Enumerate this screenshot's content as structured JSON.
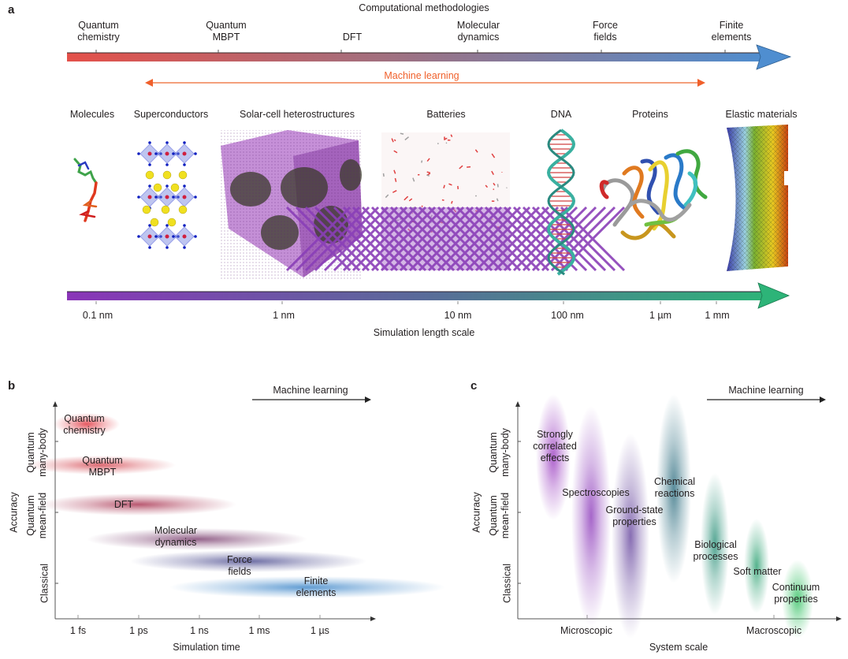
{
  "panel_a": {
    "label": "a",
    "methods_title": "Computational methodologies",
    "methods": [
      {
        "label": "Quantum\nchemistry"
      },
      {
        "label": "Quantum\nMBPT"
      },
      {
        "label": "DFT"
      },
      {
        "label": "Molecular\ndynamics"
      },
      {
        "label": "Force\nfields"
      },
      {
        "label": "Finite\nelements"
      }
    ],
    "machine_learning_label": "Machine learning",
    "systems": [
      {
        "label": "Molecules",
        "image": "molecule-structure"
      },
      {
        "label": "Superconductors",
        "image": "perovskite-lattice"
      },
      {
        "label": "Solar-cell heterostructures",
        "image": "nanocrystal-cube"
      },
      {
        "label": "Batteries",
        "image": "electrolyte-interface"
      },
      {
        "label": "DNA",
        "image": "dna-double-helix"
      },
      {
        "label": "Proteins",
        "image": "protein-ribbon"
      },
      {
        "label": "Elastic materials",
        "image": "finite-element-mesh"
      }
    ],
    "length_ticks": [
      "0.1 nm",
      "1 nm",
      "10 nm",
      "100 nm",
      "1 µm",
      "1 mm"
    ],
    "length_axis_label": "Simulation length scale",
    "colors": {
      "methods_bar_start": "#e4514a",
      "methods_bar_end": "#4f8ed0",
      "ml_arrow": "#f0602b",
      "length_bar_start": "#8a35b8",
      "length_bar_end": "#2db478"
    }
  },
  "panel_b": {
    "label": "b",
    "ml_label": "Machine learning",
    "y_axis_label": "Accuracy",
    "y_categories": [
      "Quantum\nmany-body",
      "Quantum\nmean-field",
      "Classical"
    ],
    "x_ticks": [
      "1 fs",
      "1 ps",
      "1 ns",
      "1 ms",
      "1 µs"
    ],
    "x_axis_label": "Simulation time",
    "blobs": [
      {
        "label": "Quantum\nchemistry",
        "color": "#e0303a"
      },
      {
        "label": "Quantum\nMBPT",
        "color": "#d4454f"
      },
      {
        "label": "DFT",
        "color": "#a8304e"
      },
      {
        "label": "Molecular\ndynamics",
        "color": "#7a3d6e"
      },
      {
        "label": "Force\nfields",
        "color": "#4a4a8e"
      },
      {
        "label": "Finite\nelements",
        "color": "#3a84c8"
      }
    ]
  },
  "panel_c": {
    "label": "c",
    "ml_label": "Machine learning",
    "y_axis_label": "Accuracy",
    "y_categories": [
      "Quantum\nmany-body",
      "Quantum\nmean-field",
      "Classical"
    ],
    "x_ticks": [
      "Microscopic",
      "Macroscopic"
    ],
    "x_axis_label": "System scale",
    "blobs": [
      {
        "label": "Strongly\ncorrelated\neffects",
        "color": "#9a3cc0"
      },
      {
        "label": "Spectroscopies",
        "color": "#9040bc"
      },
      {
        "label": "Ground-state\nproperties",
        "color": "#6a4aa0"
      },
      {
        "label": "Chemical\nreactions",
        "color": "#2e6e80"
      },
      {
        "label": "Biological\nprocesses",
        "color": "#2a9078"
      },
      {
        "label": "Soft matter",
        "color": "#2aa070"
      },
      {
        "label": "Continuum\nproperties",
        "color": "#30c060"
      }
    ]
  }
}
